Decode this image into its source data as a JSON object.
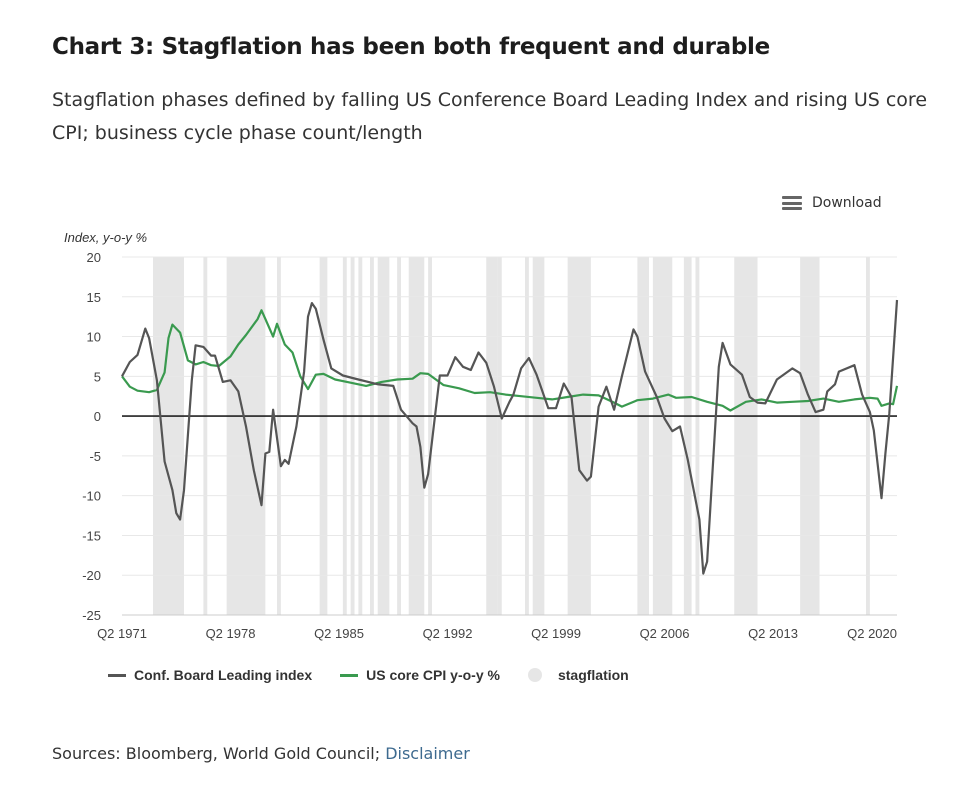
{
  "title": "Chart 3: Stagflation has been both frequent and durable",
  "subtitle": "Stagflation phases defined by falling US Conference Board Leading Index and rising US core CPI; business cycle phase count/length",
  "download_label": "Download",
  "sources_text": "Sources: Bloomberg, World Gold Council; ",
  "disclaimer_label": "Disclaimer",
  "colors": {
    "lei": "#555555",
    "cpi": "#3a9a4f",
    "stagflation": "#e6e6e6",
    "link": "#3d6a8f"
  },
  "chart_data": {
    "type": "line",
    "ylabel": "Index, y-o-y %",
    "ylim": [
      -25,
      20
    ],
    "yticks": [
      20,
      15,
      10,
      5,
      0,
      -5,
      -10,
      -15,
      -20,
      -25
    ],
    "xlim": [
      "Q2 1971",
      "Q2 2021"
    ],
    "xticks": [
      "Q2 1971",
      "Q2 1978",
      "Q2 1985",
      "Q2 1992",
      "Q2 1999",
      "Q2 2006",
      "Q2 2013",
      "Q2 2020"
    ],
    "grid": true,
    "legend_position": "bottom",
    "legend": [
      "Conf. Board Leading index",
      "US core CPI y-o-y %",
      "stagflation"
    ],
    "series": [
      {
        "name": "Conf. Board Leading index",
        "color": "#555555",
        "points": [
          [
            "Q2 1971",
            5
          ],
          [
            "Q4 1971",
            6.8
          ],
          [
            "Q2 1972",
            7.7
          ],
          [
            "Q4 1972",
            11
          ],
          [
            "Q1 1973",
            9.8
          ],
          [
            "Q3 1973",
            4.5
          ],
          [
            "Q1 1974",
            -5.7
          ],
          [
            "Q3 1974",
            -9.3
          ],
          [
            "Q4 1974",
            -12.2
          ],
          [
            "Q1 1975",
            -13
          ],
          [
            "Q2 1975",
            -9.3
          ],
          [
            "Q4 1975",
            4.5
          ],
          [
            "Q1 1976",
            8.9
          ],
          [
            "Q3 1976",
            8.7
          ],
          [
            "Q1 1977",
            7.6
          ],
          [
            "Q2 1977",
            7.6
          ],
          [
            "Q4 1977",
            4.3
          ],
          [
            "Q2 1978",
            4.5
          ],
          [
            "Q4 1978",
            3.1
          ],
          [
            "Q2 1979",
            -1.3
          ],
          [
            "Q4 1979",
            -6.8
          ],
          [
            "Q2 1980",
            -11.2
          ],
          [
            "Q3 1980",
            -4.7
          ],
          [
            "Q4 1980",
            -4.5
          ],
          [
            "Q1 1981",
            0.8
          ],
          [
            "Q3 1981",
            -6.3
          ],
          [
            "Q4 1981",
            -5.5
          ],
          [
            "Q1 1982",
            -6
          ],
          [
            "Q3 1982",
            -1.3
          ],
          [
            "Q1 1983",
            5.6
          ],
          [
            "Q2 1983",
            12.5
          ],
          [
            "Q3 1983",
            14.2
          ],
          [
            "Q4 1983",
            13.5
          ],
          [
            "Q2 1984",
            9.6
          ],
          [
            "Q4 1984",
            6.0
          ],
          [
            "Q3 1985",
            5.1
          ],
          [
            "Q3 1986",
            4.6
          ],
          [
            "Q4 1987",
            4.0
          ],
          [
            "Q4 1988",
            3.8
          ],
          [
            "Q2 1989",
            0.8
          ],
          [
            "Q1 1990",
            -0.9
          ],
          [
            "Q2 1990",
            -1.3
          ],
          [
            "Q3 1990",
            -3.9
          ],
          [
            "Q4 1990",
            -9
          ],
          [
            "Q1 1991",
            -7.3
          ],
          [
            "Q4 1991",
            5.1
          ],
          [
            "Q2 1992",
            5.1
          ],
          [
            "Q4 1992",
            7.4
          ],
          [
            "Q2 1993",
            6.2
          ],
          [
            "Q4 1993",
            5.8
          ],
          [
            "Q2 1994",
            8
          ],
          [
            "Q4 1994",
            6.7
          ],
          [
            "Q2 1995",
            3.7
          ],
          [
            "Q4 1995",
            -0.3
          ],
          [
            "Q2 1996",
            1.8
          ],
          [
            "Q3 1996",
            2.7
          ],
          [
            "Q1 1997",
            6.0
          ],
          [
            "Q3 1997",
            7.3
          ],
          [
            "Q1 1998",
            5.2
          ],
          [
            "Q4 1998",
            1.0
          ],
          [
            "Q2 1999",
            1.0
          ],
          [
            "Q4 1999",
            4.1
          ],
          [
            "Q2 2000",
            2.4
          ],
          [
            "Q4 2000",
            -6.8
          ],
          [
            "Q2 2001",
            -8.1
          ],
          [
            "Q3 2001",
            -7.6
          ],
          [
            "Q1 2002",
            1.2
          ],
          [
            "Q3 2002",
            3.7
          ],
          [
            "Q1 2003",
            0.8
          ],
          [
            "Q3 2003",
            5
          ],
          [
            "Q2 2004",
            10.9
          ],
          [
            "Q3 2004",
            10
          ],
          [
            "Q1 2005",
            5.6
          ],
          [
            "Q4 2005",
            2.4
          ],
          [
            "Q2 2006",
            -0.3
          ],
          [
            "Q4 2006",
            -1.9
          ],
          [
            "Q2 2007",
            -1.3
          ],
          [
            "Q4 2007",
            -5.5
          ],
          [
            "Q3 2008",
            -13
          ],
          [
            "Q4 2008",
            -19.8
          ],
          [
            "Q1 2009",
            -18.3
          ],
          [
            "Q4 2009",
            6.2
          ],
          [
            "Q1 2010",
            9.2
          ],
          [
            "Q3 2010",
            6.5
          ],
          [
            "Q2 2011",
            5.2
          ],
          [
            "Q4 2011",
            2.4
          ],
          [
            "Q2 2012",
            1.7
          ],
          [
            "Q4 2012",
            1.6
          ],
          [
            "Q3 2013",
            4.6
          ],
          [
            "Q3 2014",
            6.0
          ],
          [
            "Q1 2015",
            5.4
          ],
          [
            "Q3 2015",
            2.7
          ],
          [
            "Q1 2016",
            0.5
          ],
          [
            "Q3 2016",
            0.8
          ],
          [
            "Q4 2016",
            3.1
          ],
          [
            "Q2 2017",
            4
          ],
          [
            "Q3 2017",
            5.6
          ],
          [
            "Q3 2018",
            6.4
          ],
          [
            "Q1 2019",
            2.7
          ],
          [
            "Q3 2019",
            0.5
          ],
          [
            "Q4 2019",
            -1.8
          ],
          [
            "Q2 2020",
            -10.3
          ],
          [
            "Q3 2020",
            -4.7
          ],
          [
            "Q4 2020",
            0.3
          ],
          [
            "Q2 2021",
            14.6
          ]
        ]
      },
      {
        "name": "US core CPI y-o-y %",
        "color": "#3a9a4f",
        "points": [
          [
            "Q2 1971",
            5
          ],
          [
            "Q4 1971",
            3.7
          ],
          [
            "Q2 1972",
            3.2
          ],
          [
            "Q1 1973",
            3.0
          ],
          [
            "Q3 1973",
            3.3
          ],
          [
            "Q1 1974",
            5.5
          ],
          [
            "Q2 1974",
            9.8
          ],
          [
            "Q3 1974",
            11.5
          ],
          [
            "Q1 1975",
            10.5
          ],
          [
            "Q3 1975",
            7
          ],
          [
            "Q1 1976",
            6.5
          ],
          [
            "Q3 1976",
            6.8
          ],
          [
            "Q1 1977",
            6.4
          ],
          [
            "Q3 1977",
            6.3
          ],
          [
            "Q2 1978",
            7.5
          ],
          [
            "Q4 1978",
            9
          ],
          [
            "Q2 1979",
            10.2
          ],
          [
            "Q1 1980",
            12.2
          ],
          [
            "Q2 1980",
            13.3
          ],
          [
            "Q3 1980",
            12.2
          ],
          [
            "Q1 1981",
            10
          ],
          [
            "Q2 1981",
            11.6
          ],
          [
            "Q4 1981",
            9
          ],
          [
            "Q2 1982",
            8
          ],
          [
            "Q4 1982",
            5
          ],
          [
            "Q2 1983",
            3.4
          ],
          [
            "Q4 1983",
            5.2
          ],
          [
            "Q2 1984",
            5.3
          ],
          [
            "Q1 1985",
            4.6
          ],
          [
            "Q1 1986",
            4.2
          ],
          [
            "Q1 1987",
            3.8
          ],
          [
            "Q1 1988",
            4.3
          ],
          [
            "Q1 1989",
            4.6
          ],
          [
            "Q1 1990",
            4.7
          ],
          [
            "Q3 1990",
            5.4
          ],
          [
            "Q1 1991",
            5.3
          ],
          [
            "Q1 1992",
            3.9
          ],
          [
            "Q1 1993",
            3.5
          ],
          [
            "Q1 1994",
            2.9
          ],
          [
            "Q1 1995",
            3.0
          ],
          [
            "Q1 1996",
            2.7
          ],
          [
            "Q1 1997",
            2.5
          ],
          [
            "Q1 1998",
            2.3
          ],
          [
            "Q1 1999",
            2.1
          ],
          [
            "Q1 2000",
            2.4
          ],
          [
            "Q1 2001",
            2.7
          ],
          [
            "Q1 2002",
            2.6
          ],
          [
            "Q1 2003",
            1.7
          ],
          [
            "Q3 2003",
            1.2
          ],
          [
            "Q3 2004",
            2.0
          ],
          [
            "Q3 2005",
            2.2
          ],
          [
            "Q3 2006",
            2.7
          ],
          [
            "Q1 2007",
            2.3
          ],
          [
            "Q1 2008",
            2.4
          ],
          [
            "Q1 2009",
            1.8
          ],
          [
            "Q1 2010",
            1.3
          ],
          [
            "Q3 2010",
            0.7
          ],
          [
            "Q3 2011",
            1.8
          ],
          [
            "Q3 2012",
            2.1
          ],
          [
            "Q3 2013",
            1.7
          ],
          [
            "Q3 2014",
            1.8
          ],
          [
            "Q3 2015",
            1.9
          ],
          [
            "Q3 2016",
            2.2
          ],
          [
            "Q3 2017",
            1.8
          ],
          [
            "Q3 2018",
            2.1
          ],
          [
            "Q3 2019",
            2.3
          ],
          [
            "Q1 2020",
            2.2
          ],
          [
            "Q2 2020",
            1.3
          ],
          [
            "Q4 2020",
            1.6
          ],
          [
            "Q1 2021",
            1.5
          ],
          [
            "Q2 2021",
            3.8
          ]
        ]
      }
    ],
    "stagflation_periods": [
      [
        "Q2 1973",
        "Q1 1975"
      ],
      [
        "Q3 1976",
        "Q3 1976"
      ],
      [
        "Q1 1978",
        "Q1 1978"
      ],
      [
        "Q2 1978",
        "Q2 1980"
      ],
      [
        "Q2 1981",
        "Q2 1981"
      ],
      [
        "Q1 1984",
        "Q2 1984"
      ],
      [
        "Q3 1985",
        "Q3 1985"
      ],
      [
        "Q1 1986",
        "Q1 1986"
      ],
      [
        "Q3 1986",
        "Q3 1986"
      ],
      [
        "Q2 1987",
        "Q2 1987"
      ],
      [
        "Q4 1987",
        "Q1 1988"
      ],
      [
        "Q2 1988",
        "Q2 1988"
      ],
      [
        "Q1 1989",
        "Q1 1989"
      ],
      [
        "Q4 1989",
        "Q3 1990"
      ],
      [
        "Q1 1991",
        "Q1 1991"
      ],
      [
        "Q4 1994",
        "Q2 1995"
      ],
      [
        "Q3 1995",
        "Q3 1995"
      ],
      [
        "Q2 1997",
        "Q2 1997"
      ],
      [
        "Q4 1997",
        "Q1 1998"
      ],
      [
        "Q2 1998",
        "Q2 1998"
      ],
      [
        "Q1 2000",
        "Q1 2001"
      ],
      [
        "Q2 2001",
        "Q2 2001"
      ],
      [
        "Q3 2004",
        "Q1 2005"
      ],
      [
        "Q3 2005",
        "Q3 2006"
      ],
      [
        "Q3 2007",
        "Q4 2007"
      ],
      [
        "Q2 2008",
        "Q2 2008"
      ],
      [
        "Q4 2010",
        "Q1 2012"
      ],
      [
        "Q1 2015",
        "Q1 2016"
      ],
      [
        "Q2 2019",
        "Q2 2019"
      ]
    ]
  }
}
